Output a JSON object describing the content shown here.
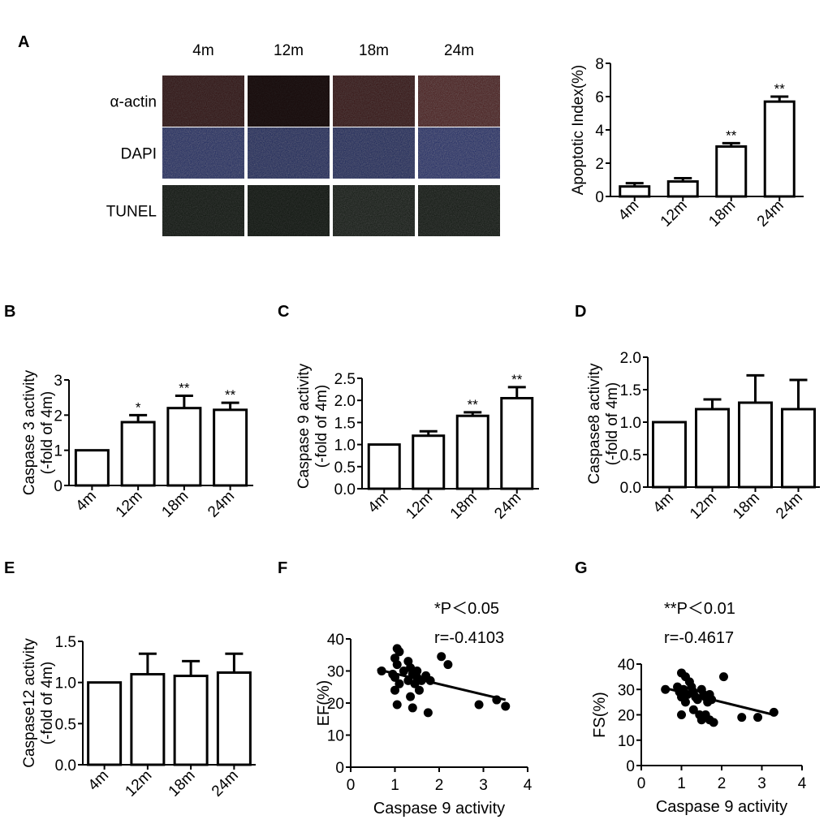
{
  "colors": {
    "ink": "#000000",
    "bar_fill": "#ffffff",
    "actin": "#5a0a0e",
    "dapi": "#12256a",
    "tunel": "#122a14"
  },
  "panel_letters": [
    "A",
    "B",
    "C",
    "D",
    "E",
    "F",
    "G"
  ],
  "micrographs": {
    "columns": [
      "4m",
      "12m",
      "18m",
      "24m"
    ],
    "rows": [
      "α-actin",
      "DAPI",
      "TUNEL"
    ],
    "brightness": [
      [
        0.55,
        0.25,
        0.6,
        0.8
      ],
      [
        0.9,
        0.85,
        0.85,
        0.95
      ],
      [
        0.5,
        0.45,
        0.6,
        0.55
      ]
    ]
  },
  "chart_data": [
    {
      "id": "A",
      "type": "bar",
      "title": "",
      "categories": [
        "4m",
        "12m",
        "18m",
        "24m"
      ],
      "values": [
        0.6,
        0.9,
        3.0,
        5.7
      ],
      "errors": [
        0.2,
        0.2,
        0.2,
        0.3
      ],
      "sig": [
        "",
        "",
        "**",
        "**"
      ],
      "ylabel": [
        "Apoptotic Index(%)"
      ],
      "ylim": [
        0,
        8
      ],
      "ticks": [
        0,
        2,
        4,
        6,
        8
      ],
      "tick_labels": [
        "0",
        "2",
        "4",
        "6",
        "8"
      ]
    },
    {
      "id": "B",
      "type": "bar",
      "title": "",
      "categories": [
        "4m",
        "12m",
        "18m",
        "24m"
      ],
      "values": [
        1.0,
        1.8,
        2.2,
        2.15
      ],
      "errors": [
        0,
        0.2,
        0.35,
        0.2
      ],
      "sig": [
        "",
        "*",
        "**",
        "**"
      ],
      "ylabel": [
        "Caspase 3 activity",
        "(-fold of 4m)"
      ],
      "ylim": [
        0,
        3
      ],
      "ticks": [
        0,
        1,
        2,
        3
      ],
      "tick_labels": [
        "0",
        "1",
        "2",
        "3"
      ]
    },
    {
      "id": "C",
      "type": "bar",
      "title": "",
      "categories": [
        "4m",
        "12m",
        "18m",
        "24m"
      ],
      "values": [
        1.0,
        1.2,
        1.65,
        2.05
      ],
      "errors": [
        0,
        0.1,
        0.08,
        0.25
      ],
      "sig": [
        "",
        "",
        "**",
        "**"
      ],
      "ylabel": [
        "Caspase 9 activity",
        "(-fold of 4m)"
      ],
      "ylim": [
        0,
        2.5
      ],
      "ticks": [
        0,
        0.5,
        1,
        1.5,
        2,
        2.5
      ],
      "tick_labels": [
        "0.0",
        "0.5",
        "1.0",
        "1.5",
        "2.0",
        "2.5"
      ]
    },
    {
      "id": "D",
      "type": "bar",
      "title": "",
      "categories": [
        "4m",
        "12m",
        "18m",
        "24m"
      ],
      "values": [
        1.0,
        1.2,
        1.3,
        1.2
      ],
      "errors": [
        0,
        0.15,
        0.42,
        0.45
      ],
      "sig": [
        "",
        "",
        "",
        ""
      ],
      "ylabel": [
        "Caspase8 activity",
        "(-fold of 4m)"
      ],
      "ylim": [
        0,
        2
      ],
      "ticks": [
        0,
        0.5,
        1,
        1.5,
        2
      ],
      "tick_labels": [
        "0.0",
        "0.5",
        "1.0",
        "1.5",
        "2.0"
      ]
    },
    {
      "id": "E",
      "type": "bar",
      "title": "",
      "categories": [
        "4m",
        "12m",
        "18m",
        "24m"
      ],
      "values": [
        1.0,
        1.1,
        1.08,
        1.12
      ],
      "errors": [
        0,
        0.25,
        0.18,
        0.23
      ],
      "sig": [
        "",
        "",
        "",
        ""
      ],
      "ylabel": [
        "Caspase12 activity",
        "(-fold of 4m)"
      ],
      "ylim": [
        0,
        1.5
      ],
      "ticks": [
        0,
        0.5,
        1,
        1.5
      ],
      "tick_labels": [
        "0.0",
        "0.5",
        "1.0",
        "1.5"
      ]
    },
    {
      "id": "F",
      "type": "scatter",
      "title": "",
      "xlabel": "Caspase 9 activity",
      "ylabel": "EF(%)",
      "xlim": [
        0,
        4
      ],
      "ylim": [
        0,
        40
      ],
      "xticks": [
        0,
        1,
        2,
        3,
        4
      ],
      "yticks": [
        0,
        10,
        20,
        30,
        40
      ],
      "annotation": [
        "*P＜0.05",
        "r=-0.4103"
      ],
      "fit": {
        "x": [
          0.6,
          3.5
        ],
        "y": [
          30.5,
          21
        ]
      },
      "points": [
        [
          0.7,
          30
        ],
        [
          0.95,
          29
        ],
        [
          1.0,
          34
        ],
        [
          1.05,
          37
        ],
        [
          1.1,
          36
        ],
        [
          1.05,
          32
        ],
        [
          1.0,
          28
        ],
        [
          1.1,
          26
        ],
        [
          1.0,
          24
        ],
        [
          1.05,
          19.5
        ],
        [
          1.2,
          30
        ],
        [
          1.3,
          33
        ],
        [
          1.35,
          31
        ],
        [
          1.4,
          29
        ],
        [
          1.3,
          27
        ],
        [
          1.45,
          26
        ],
        [
          1.35,
          22
        ],
        [
          1.4,
          18.5
        ],
        [
          1.5,
          28
        ],
        [
          1.6,
          27
        ],
        [
          1.55,
          24
        ],
        [
          1.7,
          28.5
        ],
        [
          1.8,
          27
        ],
        [
          1.75,
          17
        ],
        [
          1.5,
          30
        ],
        [
          2.05,
          34.5
        ],
        [
          2.2,
          32
        ],
        [
          2.9,
          19.5
        ],
        [
          3.3,
          21
        ],
        [
          3.5,
          19
        ]
      ]
    },
    {
      "id": "G",
      "type": "scatter",
      "title": "",
      "xlabel": "Caspase 9 activity",
      "ylabel": "FS(%)",
      "xlim": [
        0,
        4
      ],
      "ylim": [
        0,
        40
      ],
      "xticks": [
        0,
        1,
        2,
        3,
        4
      ],
      "yticks": [
        0,
        10,
        20,
        30,
        40
      ],
      "annotation": [
        "**P＜0.01",
        "r=-0.4617"
      ],
      "fit": {
        "x": [
          0.6,
          3.3
        ],
        "y": [
          30.5,
          20
        ]
      },
      "points": [
        [
          0.6,
          30
        ],
        [
          0.9,
          31
        ],
        [
          0.95,
          29
        ],
        [
          1.0,
          36.5
        ],
        [
          1.1,
          35
        ],
        [
          1.2,
          33
        ],
        [
          1.05,
          30
        ],
        [
          1.0,
          27
        ],
        [
          1.1,
          25
        ],
        [
          1.0,
          20
        ],
        [
          1.15,
          28
        ],
        [
          1.25,
          31
        ],
        [
          1.3,
          29
        ],
        [
          1.35,
          27
        ],
        [
          1.4,
          26
        ],
        [
          1.3,
          22
        ],
        [
          1.45,
          20
        ],
        [
          1.5,
          30
        ],
        [
          1.55,
          28
        ],
        [
          1.6,
          27
        ],
        [
          1.65,
          25
        ],
        [
          1.7,
          28
        ],
        [
          1.75,
          26
        ],
        [
          1.6,
          20
        ],
        [
          1.5,
          18
        ],
        [
          1.7,
          18
        ],
        [
          1.8,
          17
        ],
        [
          2.05,
          35
        ],
        [
          2.5,
          19
        ],
        [
          2.9,
          19
        ],
        [
          3.3,
          21
        ]
      ]
    }
  ]
}
